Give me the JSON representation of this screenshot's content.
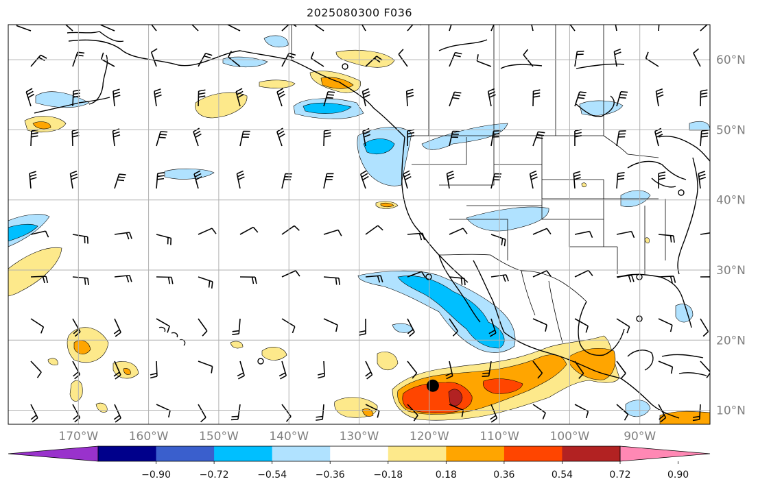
{
  "title": "2025080300 F036",
  "map": {
    "lon_range": [
      -180,
      -80
    ],
    "lat_range": [
      8,
      65
    ],
    "lon_ticks": [
      {
        "value": -170,
        "label": "170°W"
      },
      {
        "value": -160,
        "label": "160°W"
      },
      {
        "value": -150,
        "label": "150°W"
      },
      {
        "value": -140,
        "label": "140°W"
      },
      {
        "value": -130,
        "label": "130°W"
      },
      {
        "value": -120,
        "label": "120°W"
      },
      {
        "value": -110,
        "label": "110°W"
      },
      {
        "value": -100,
        "label": "100°W"
      },
      {
        "value": -90,
        "label": "90°W"
      }
    ],
    "lat_ticks": [
      {
        "value": 10,
        "label": "10°N"
      },
      {
        "value": 20,
        "label": "20°N"
      },
      {
        "value": 30,
        "label": "30°N"
      },
      {
        "value": 40,
        "label": "40°N"
      },
      {
        "value": 50,
        "label": "50°N"
      },
      {
        "value": 60,
        "label": "60°N"
      }
    ],
    "storm_center": {
      "lon": -119.5,
      "lat": 13.5
    },
    "colors": {
      "land_line": "#000000",
      "grid": "#b0b0b0",
      "label": "#808080"
    }
  },
  "colorbar": {
    "colors": [
      "#9932cc",
      "#00008b",
      "#3a5fcd",
      "#00bfff",
      "#b0e2ff",
      "#ffffff",
      "#fde98b",
      "#ffa500",
      "#ff4500",
      "#b22222",
      "#ff88b4"
    ],
    "ticks": [
      "−0.90",
      "−0.72",
      "−0.54",
      "−0.36",
      "−0.18",
      "0.18",
      "0.36",
      "0.54",
      "0.72",
      "0.90"
    ],
    "levels": [
      -0.9,
      -0.72,
      -0.54,
      -0.36,
      -0.18,
      0.18,
      0.36,
      0.54,
      0.72,
      0.9
    ]
  }
}
